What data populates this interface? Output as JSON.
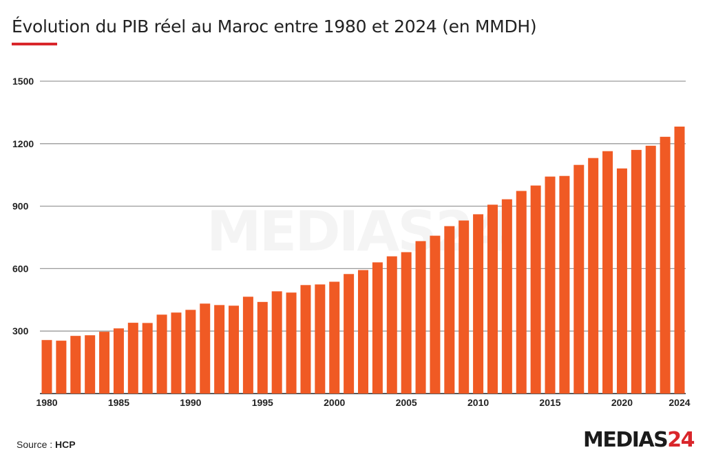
{
  "title": "Évolution du PIB réel au Maroc entre 1980 et 2024 (en MMDH)",
  "source_label": "Source : ",
  "source_value": "HCP",
  "logo_text": "MEDIAS",
  "logo_number": "24",
  "colors": {
    "bar": "#f05a24",
    "grid": "#9a9a9a",
    "accent": "#d9262b"
  },
  "chart_data": {
    "type": "bar",
    "title": "Évolution du PIB réel au Maroc entre 1980 et 2024 (en MMDH)",
    "xlabel": "",
    "ylabel": "",
    "ylim": [
      0,
      1500
    ],
    "yticks": [
      300,
      600,
      900,
      1200,
      1500
    ],
    "grid": true,
    "xtick_labels": [
      "1980",
      "1985",
      "1990",
      "1995",
      "2000",
      "2005",
      "2010",
      "2015",
      "2020",
      "2024"
    ],
    "categories": [
      1980,
      1981,
      1982,
      1983,
      1984,
      1985,
      1986,
      1987,
      1988,
      1989,
      1990,
      1991,
      1992,
      1993,
      1994,
      1995,
      1996,
      1997,
      1998,
      1999,
      2000,
      2001,
      2002,
      2003,
      2004,
      2005,
      2006,
      2007,
      2008,
      2009,
      2010,
      2011,
      2012,
      2013,
      2014,
      2015,
      2016,
      2017,
      2018,
      2019,
      2020,
      2021,
      2022,
      2023,
      2024
    ],
    "values": [
      257,
      254,
      277,
      280,
      297,
      313,
      340,
      339,
      379,
      389,
      402,
      432,
      425,
      422,
      465,
      440,
      491,
      485,
      521,
      524,
      537,
      574,
      593,
      630,
      659,
      679,
      732,
      758,
      804,
      831,
      861,
      907,
      933,
      973,
      999,
      1042,
      1045,
      1098,
      1131,
      1164,
      1081,
      1170,
      1190,
      1233,
      1282
    ]
  }
}
